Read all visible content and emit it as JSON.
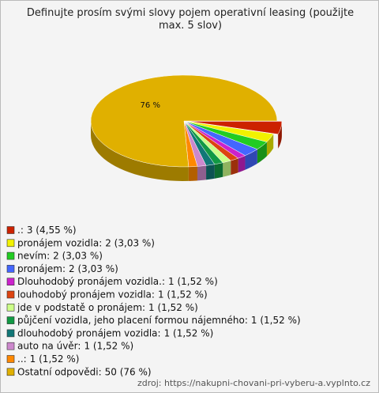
{
  "chart_data": {
    "type": "pie",
    "title": "Definujte prosím svými slovy pojem operativní leasing (použijte max. 5 slov)",
    "categories": [
      ".:",
      "pronájem vozidla:",
      "nevím:",
      "pronájem:",
      "Dlouhodobý pronájem vozidla.:",
      "louhodobý pronájem vozidla:",
      "jde v podstatě o pronájem:",
      "půjčení vozidla, jeho placení formou nájemného:",
      "dlouhodobý pronájem vozidla:",
      "auto na úvěr:",
      "..:",
      "Ostatní odpovědi:"
    ],
    "values": [
      4.55,
      3.03,
      3.03,
      3.03,
      1.52,
      1.52,
      1.52,
      1.52,
      1.52,
      1.52,
      1.52,
      76
    ],
    "value_labels": [
      "3 (4,55 %)",
      "2 (3,03 %)",
      "2 (3,03 %)",
      "2 (3,03 %)",
      "1 (1,52 %)",
      "1 (1,52 %)",
      "1 (1,52 %)",
      "1 (1,52 %)",
      "1 (1,52 %)",
      "1 (1,52 %)",
      "1 (1,52 %)",
      "50 (76 %)"
    ],
    "slice_labels": [
      null,
      null,
      null,
      null,
      null,
      null,
      null,
      null,
      null,
      null,
      null,
      "76 %"
    ],
    "colors": [
      "#cc2200",
      "#f2f200",
      "#22cc22",
      "#4466ff",
      "#cc22cc",
      "#dd4411",
      "#ccff88",
      "#119944",
      "#117777",
      "#cc88cc",
      "#ff8800",
      "#e0b000"
    ],
    "source": "zdroj: https://nakupni-chovani-pri-vyberu-a.vyplnto.cz"
  }
}
